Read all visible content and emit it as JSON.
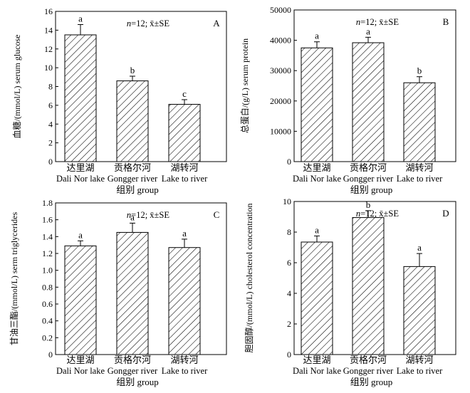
{
  "shared": {
    "xlabel": "组别 group",
    "stats_note_n": "n",
    "stats_note_rest": "=12; x̄±SE",
    "categories": [
      {
        "cn": "达里湖",
        "en": "Dali Nor lake"
      },
      {
        "cn": "贡格尔河",
        "en": "Gongger river"
      },
      {
        "cn": "湖转河",
        "en": "Lake to river"
      }
    ]
  },
  "chart_data": [
    {
      "type": "bar",
      "panel": "A",
      "ylabel": "血糖/(mmol/L) serum glucose",
      "ylim": [
        0,
        16
      ],
      "yticks": [
        "0",
        "2",
        "4",
        "6",
        "8",
        "10",
        "12",
        "14",
        "16"
      ],
      "categories": [
        "达里湖 Dali Nor lake",
        "贡格尔河 Gongger river",
        "湖转河 Lake to river"
      ],
      "values": [
        13.5,
        8.6,
        6.1
      ],
      "errors": [
        1.1,
        0.5,
        0.5
      ],
      "letters": [
        "a",
        "b",
        "c"
      ],
      "show_xlabel": true
    },
    {
      "type": "bar",
      "panel": "B",
      "ylabel": "总蛋白/(g/L) serum protein",
      "ylim": [
        0,
        50000
      ],
      "yticks": [
        "0",
        "10000",
        "20000",
        "30000",
        "40000",
        "50000"
      ],
      "categories": [
        "达里湖 Dali Nor lake",
        "贡格尔河 Gongger river",
        "湖转河 Lake to river"
      ],
      "values": [
        37500,
        39200,
        26000
      ],
      "errors": [
        2000,
        1800,
        2000
      ],
      "letters": [
        "a",
        "a",
        "b"
      ],
      "show_xlabel": true
    },
    {
      "type": "bar",
      "panel": "C",
      "ylabel": "甘油三酯/(mmol/L) serm triglycerides",
      "ylim": [
        0,
        1.8
      ],
      "yticks": [
        "0",
        "0.2",
        "0.4",
        "0.6",
        "0.8",
        "1.0",
        "1.2",
        "1.4",
        "1.6",
        "1.8"
      ],
      "categories": [
        "达里湖 Dali Nor lake",
        "贡格尔河 Gongger river",
        "湖转河 Lake to river"
      ],
      "values": [
        1.29,
        1.45,
        1.27
      ],
      "errors": [
        0.06,
        0.11,
        0.1
      ],
      "letters": [
        "a",
        "a",
        "a"
      ],
      "show_xlabel": true
    },
    {
      "type": "bar",
      "panel": "D",
      "ylabel": "胆固醇/(mmol/L) cholesterol concentration",
      "ylim": [
        0,
        10
      ],
      "yticks": [
        "0",
        "2",
        "4",
        "6",
        "8",
        "10"
      ],
      "categories": [
        "达里湖 Dali Nor lake",
        "贡格尔河 Gongger river",
        "湖转河 Lake to river"
      ],
      "values": [
        7.35,
        8.95,
        5.75
      ],
      "errors": [
        0.4,
        0.45,
        0.85
      ],
      "letters": [
        "a",
        "b",
        "a"
      ],
      "show_xlabel": true
    }
  ]
}
